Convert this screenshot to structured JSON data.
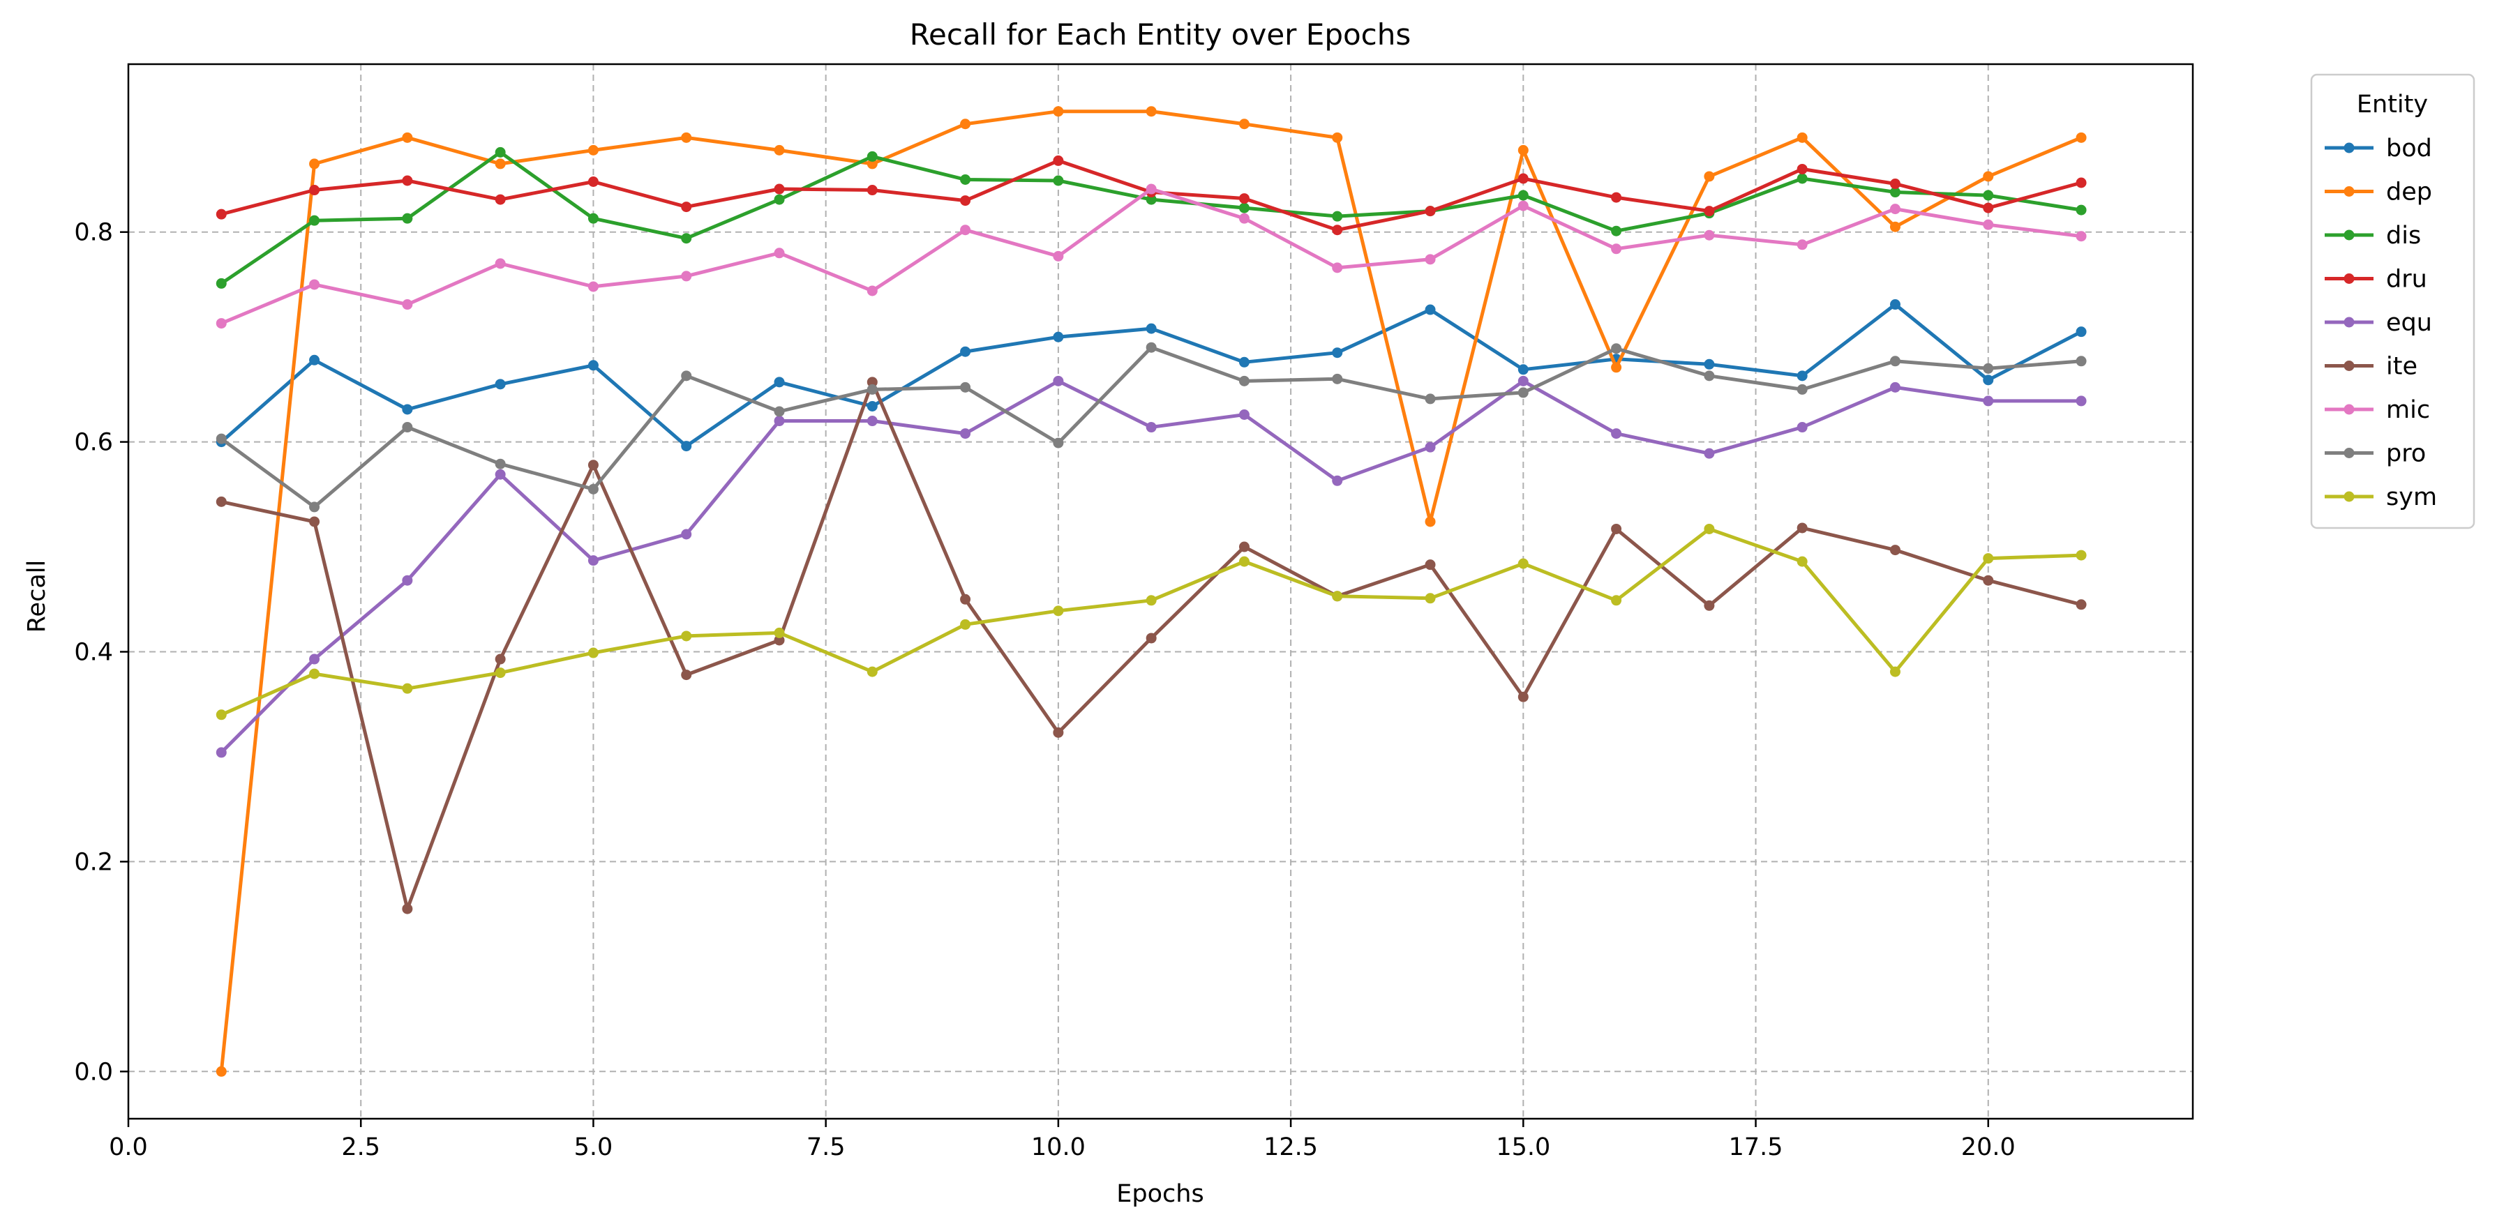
{
  "chart_data": {
    "type": "line",
    "title": "Recall for Each Entity over Epochs",
    "xlabel": "Epochs",
    "ylabel": "Recall",
    "xlim": [
      0,
      22.2
    ],
    "ylim": [
      -0.045,
      0.96
    ],
    "xticks": [
      0.0,
      2.5,
      5.0,
      7.5,
      10.0,
      12.5,
      15.0,
      17.5,
      20.0
    ],
    "xtick_labels": [
      "0.0",
      "2.5",
      "5.0",
      "7.5",
      "10.0",
      "12.5",
      "15.0",
      "17.5",
      "20.0"
    ],
    "yticks": [
      0.0,
      0.2,
      0.4,
      0.6,
      0.8
    ],
    "ytick_labels": [
      "0.0",
      "0.2",
      "0.4",
      "0.6",
      "0.8"
    ],
    "grid": true,
    "legend_title": "Entity",
    "legend_position": "outside-right-top",
    "x": [
      1,
      2,
      3,
      4,
      5,
      6,
      7,
      8,
      9,
      10,
      11,
      12,
      13,
      14,
      15,
      16,
      17,
      18,
      19,
      20,
      21
    ],
    "series": [
      {
        "name": "bod",
        "color": "#1f77b4",
        "values": [
          0.6,
          0.678,
          0.631,
          0.655,
          0.673,
          0.596,
          0.657,
          0.634,
          0.686,
          0.7,
          0.708,
          0.676,
          0.685,
          0.726,
          0.669,
          0.679,
          0.674,
          0.663,
          0.731,
          0.659,
          0.705
        ]
      },
      {
        "name": "dep",
        "color": "#ff7f0e",
        "values": [
          0.0,
          0.865,
          0.89,
          0.865,
          0.878,
          0.89,
          0.878,
          0.865,
          0.903,
          0.915,
          0.915,
          0.903,
          0.89,
          0.524,
          0.878,
          0.671,
          0.853,
          0.89,
          0.805,
          0.853,
          0.89
        ]
      },
      {
        "name": "dis",
        "color": "#2ca02c",
        "values": [
          0.751,
          0.811,
          0.813,
          0.876,
          0.813,
          0.794,
          0.831,
          0.872,
          0.85,
          0.849,
          0.831,
          0.823,
          0.815,
          0.82,
          0.835,
          0.801,
          0.818,
          0.851,
          0.838,
          0.835,
          0.821
        ]
      },
      {
        "name": "dru",
        "color": "#d62728",
        "values": [
          0.817,
          0.84,
          0.849,
          0.831,
          0.848,
          0.824,
          0.841,
          0.84,
          0.83,
          0.868,
          0.838,
          0.832,
          0.802,
          0.82,
          0.851,
          0.833,
          0.82,
          0.86,
          0.846,
          0.823,
          0.847
        ]
      },
      {
        "name": "equ",
        "color": "#9467bd",
        "values": [
          0.304,
          0.393,
          0.468,
          0.569,
          0.487,
          0.512,
          0.62,
          0.62,
          0.608,
          0.658,
          0.614,
          0.626,
          0.563,
          0.595,
          0.658,
          0.608,
          0.589,
          0.614,
          0.652,
          0.639,
          0.639
        ]
      },
      {
        "name": "ite",
        "color": "#8c564b",
        "values": [
          0.543,
          0.524,
          0.155,
          0.393,
          0.578,
          0.378,
          0.411,
          0.657,
          0.45,
          0.323,
          0.413,
          0.5,
          0.453,
          0.483,
          0.357,
          0.517,
          0.444,
          0.518,
          0.497,
          0.468,
          0.445
        ]
      },
      {
        "name": "mic",
        "color": "#e377c2",
        "values": [
          0.713,
          0.75,
          0.731,
          0.77,
          0.748,
          0.758,
          0.78,
          0.744,
          0.802,
          0.777,
          0.841,
          0.813,
          0.766,
          0.774,
          0.825,
          0.784,
          0.797,
          0.788,
          0.822,
          0.807,
          0.796
        ]
      },
      {
        "name": "pro",
        "color": "#7f7f7f",
        "values": [
          0.603,
          0.538,
          0.614,
          0.579,
          0.555,
          0.663,
          0.629,
          0.65,
          0.652,
          0.599,
          0.69,
          0.658,
          0.66,
          0.641,
          0.647,
          0.689,
          0.663,
          0.65,
          0.677,
          0.67,
          0.677
        ]
      },
      {
        "name": "sym",
        "color": "#bcbd22",
        "values": [
          0.34,
          0.379,
          0.365,
          0.38,
          0.399,
          0.415,
          0.418,
          0.381,
          0.426,
          0.439,
          0.449,
          0.486,
          0.453,
          0.451,
          0.484,
          0.449,
          0.517,
          0.486,
          0.381,
          0.489,
          0.492
        ]
      }
    ]
  }
}
